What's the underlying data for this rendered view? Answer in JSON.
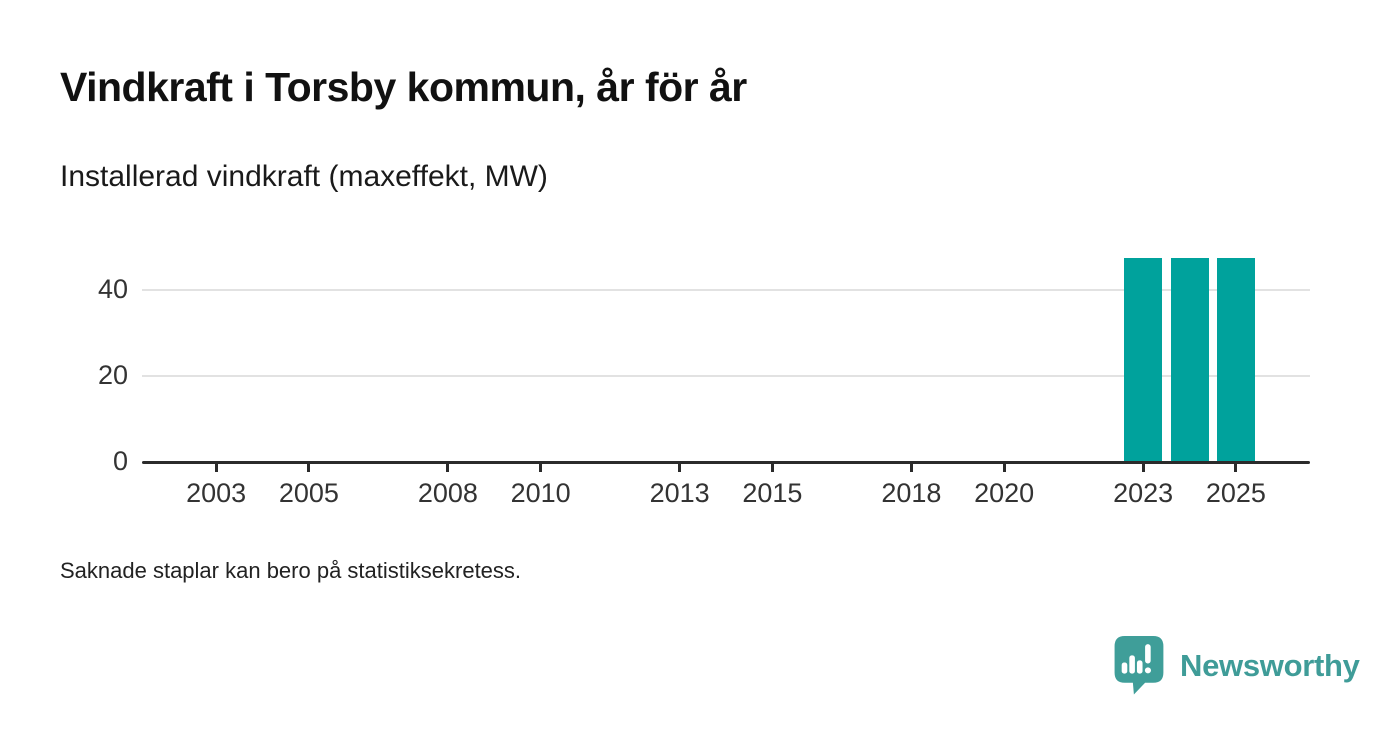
{
  "title": "Vindkraft i Torsby kommun, år för år",
  "subtitle": "Installerad vindkraft (maxeffekt, MW)",
  "footnote": "Saknade staplar kan bero på statistiksekretess.",
  "branding": {
    "name": "Newsworthy",
    "icon": "newsworthy-chart-bubble-icon"
  },
  "colors": {
    "bar": "#00a29c",
    "brand": "#3f9c98",
    "axis": "#2b2b2b",
    "grid": "#e2e2e2",
    "tick_text": "#333333"
  },
  "chart_data": {
    "type": "bar",
    "title": "Vindkraft i Torsby kommun, år för år",
    "subtitle": "Installerad vindkraft (maxeffekt, MW)",
    "xlabel": "",
    "ylabel": "Installerad vindkraft (maxeffekt, MW)",
    "x": [
      2023,
      2024,
      2025
    ],
    "values": [
      47.5,
      47.5,
      47.5
    ],
    "x_ticks": [
      2003,
      2005,
      2008,
      2010,
      2013,
      2015,
      2018,
      2020,
      2023,
      2025
    ],
    "y_ticks": [
      0,
      20,
      40
    ],
    "xlim": [
      2001.4,
      2026.6
    ],
    "ylim": [
      0,
      50
    ],
    "grid": "horizontal-only",
    "legend": "none",
    "bar_color": "#00a29c",
    "note": "Saknade staplar kan bero på statistiksekretess."
  }
}
